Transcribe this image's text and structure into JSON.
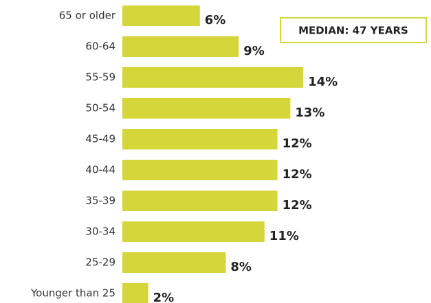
{
  "chart_data": {
    "type": "bar",
    "orientation": "horizontal",
    "categories": [
      "65 or older",
      "60-64",
      "55-59",
      "50-54",
      "45-49",
      "40-44",
      "35-39",
      "30-34",
      "25-29",
      "Younger than 25"
    ],
    "values": [
      6,
      9,
      14,
      13,
      12,
      12,
      12,
      11,
      8,
      2
    ],
    "value_labels": [
      "6%",
      "9%",
      "14%",
      "13%",
      "12%",
      "12%",
      "12%",
      "11%",
      "8%",
      "2%"
    ],
    "color": "#d5d63a",
    "annotation": "MEDIAN: 47 YEARS"
  }
}
